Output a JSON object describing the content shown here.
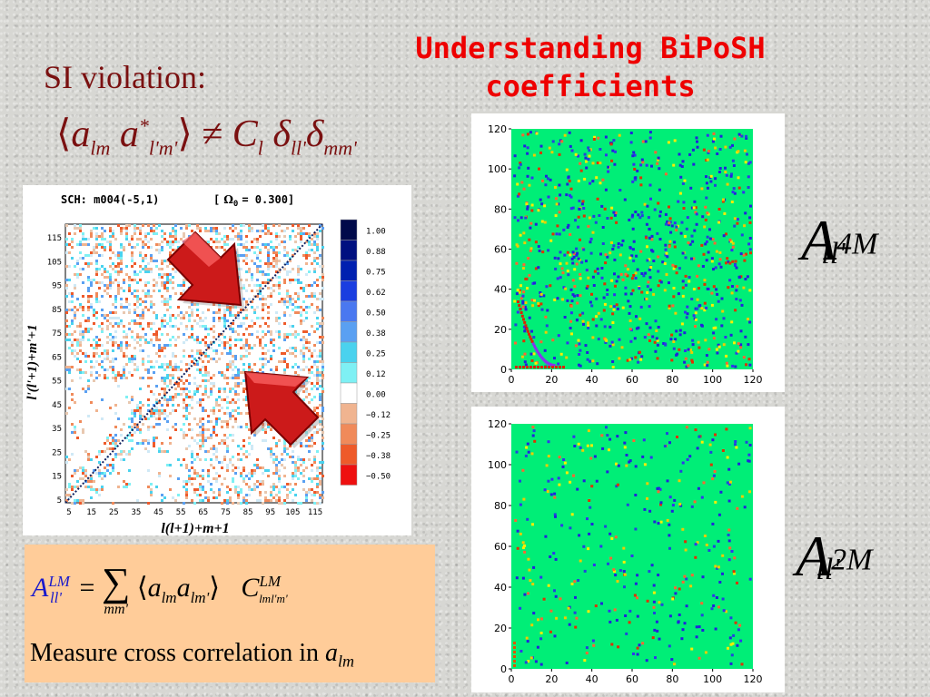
{
  "slide": {
    "title_line1": "Understanding BiPoSH",
    "title_line2": "coefficients",
    "si_label": "SI violation:",
    "eq1": {
      "lhs_a1": "a",
      "lhs_sub1": "lm",
      "lhs_a2": "a",
      "lhs_sup2": "*",
      "lhs_sub2": "l'm'",
      "neq": "≠",
      "C": "C",
      "C_sub": "l",
      "delta1": "δ",
      "delta1_sub": "ll'",
      "delta2": "δ",
      "delta2_sub": "mm'"
    },
    "formula": {
      "A": "A",
      "A_sup": "LM",
      "A_sub": "ll'",
      "equals": "=",
      "sum": "∑",
      "sum_sub": "mm'",
      "a1": "a",
      "a1_sub": "lm",
      "a2": "a",
      "a2_sub": "lm'",
      "C": "C",
      "C_sup": "LM",
      "C_sub": "lml'm'"
    },
    "measure_text": "Measure cross correlation in ",
    "measure_var": "a",
    "measure_sub": "lm",
    "label_a": {
      "A": "A",
      "sup": "4M",
      "sub": "ll'"
    },
    "label_b": {
      "A": "A",
      "sup": "2M",
      "sub": "ll'"
    }
  },
  "heatmap": {
    "header_left": "SCH:  m004(-5,1)",
    "header_bracket_open": "[",
    "header_omega": "Ω",
    "header_omega_sub": "0",
    "header_value": "= 0.300]",
    "ylabel": "l'(l'+1)+m'+1",
    "xlabel": "l(l+1)+m+1",
    "xticks": [
      "5",
      "15",
      "25",
      "35",
      "45",
      "55",
      "65",
      "75",
      "85",
      "95",
      "105",
      "115"
    ],
    "yticks": [
      "115",
      "105",
      "95",
      "85",
      "75",
      "65",
      "55",
      "45",
      "35",
      "25",
      "15",
      "5"
    ],
    "colorbar": [
      {
        "label": "1.00",
        "color": "#000a4a"
      },
      {
        "label": "0.88",
        "color": "#001080"
      },
      {
        "label": "0.75",
        "color": "#0020b0"
      },
      {
        "label": "0.62",
        "color": "#1a3ee0"
      },
      {
        "label": "0.50",
        "color": "#4a78f0"
      },
      {
        "label": "0.38",
        "color": "#5aa0f2"
      },
      {
        "label": "0.25",
        "color": "#4ad2ee"
      },
      {
        "label": "0.12",
        "color": "#7ef0f4"
      },
      {
        "label": "0.00",
        "color": "#ffffff"
      },
      {
        "label": "−0.12",
        "color": "#f0b490"
      },
      {
        "label": "−0.25",
        "color": "#f08a5a"
      },
      {
        "label": "−0.38",
        "color": "#ee5a2a"
      },
      {
        "label": "−0.50",
        "color": "#ee1010"
      }
    ]
  },
  "plot_a": {
    "xticks": [
      "0",
      "20",
      "40",
      "60",
      "80",
      "100",
      "120"
    ],
    "yticks": [
      "120",
      "100",
      "80",
      "60",
      "40",
      "20",
      "0"
    ]
  },
  "plot_b": {
    "xticks": [
      "0",
      "20",
      "40",
      "60",
      "80",
      "100",
      "120"
    ],
    "yticks": [
      "120",
      "100",
      "80",
      "60",
      "40",
      "20",
      "0"
    ]
  },
  "colors": {
    "title": "#ee0000",
    "dark_red_text": "#7a1010",
    "plot_background": "#00ee77",
    "box_background": "#ffcc99"
  }
}
